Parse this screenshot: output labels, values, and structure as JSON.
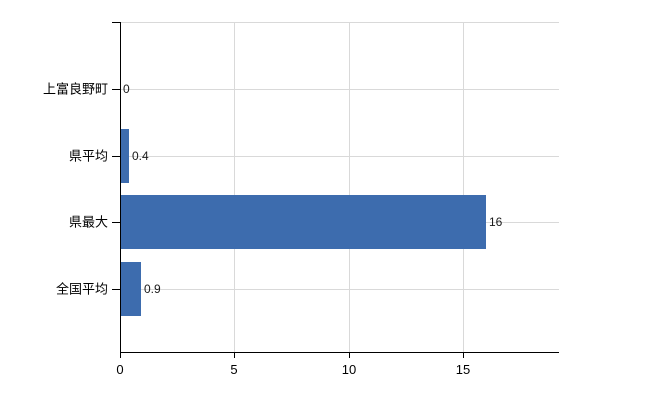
{
  "chart_data": {
    "type": "bar",
    "orientation": "horizontal",
    "title": "",
    "xlabel": "",
    "ylabel": "",
    "categories": [
      "上富良野町",
      "県平均",
      "県最大",
      "全国平均"
    ],
    "values": [
      0,
      0.4,
      16,
      0.9
    ],
    "value_labels": [
      "0",
      "0.4",
      "16",
      "0.9"
    ],
    "x_ticks": [
      0,
      5,
      10,
      15
    ],
    "x_tick_labels": [
      "0",
      "5",
      "10",
      "15"
    ],
    "xlim": [
      0,
      19.2
    ],
    "grid": true,
    "legend": false,
    "colors": {
      "bar": "#3d6cae",
      "axis": "#000000",
      "grid": "#d9d9d9",
      "text": "#000000",
      "background": "#ffffff"
    }
  }
}
